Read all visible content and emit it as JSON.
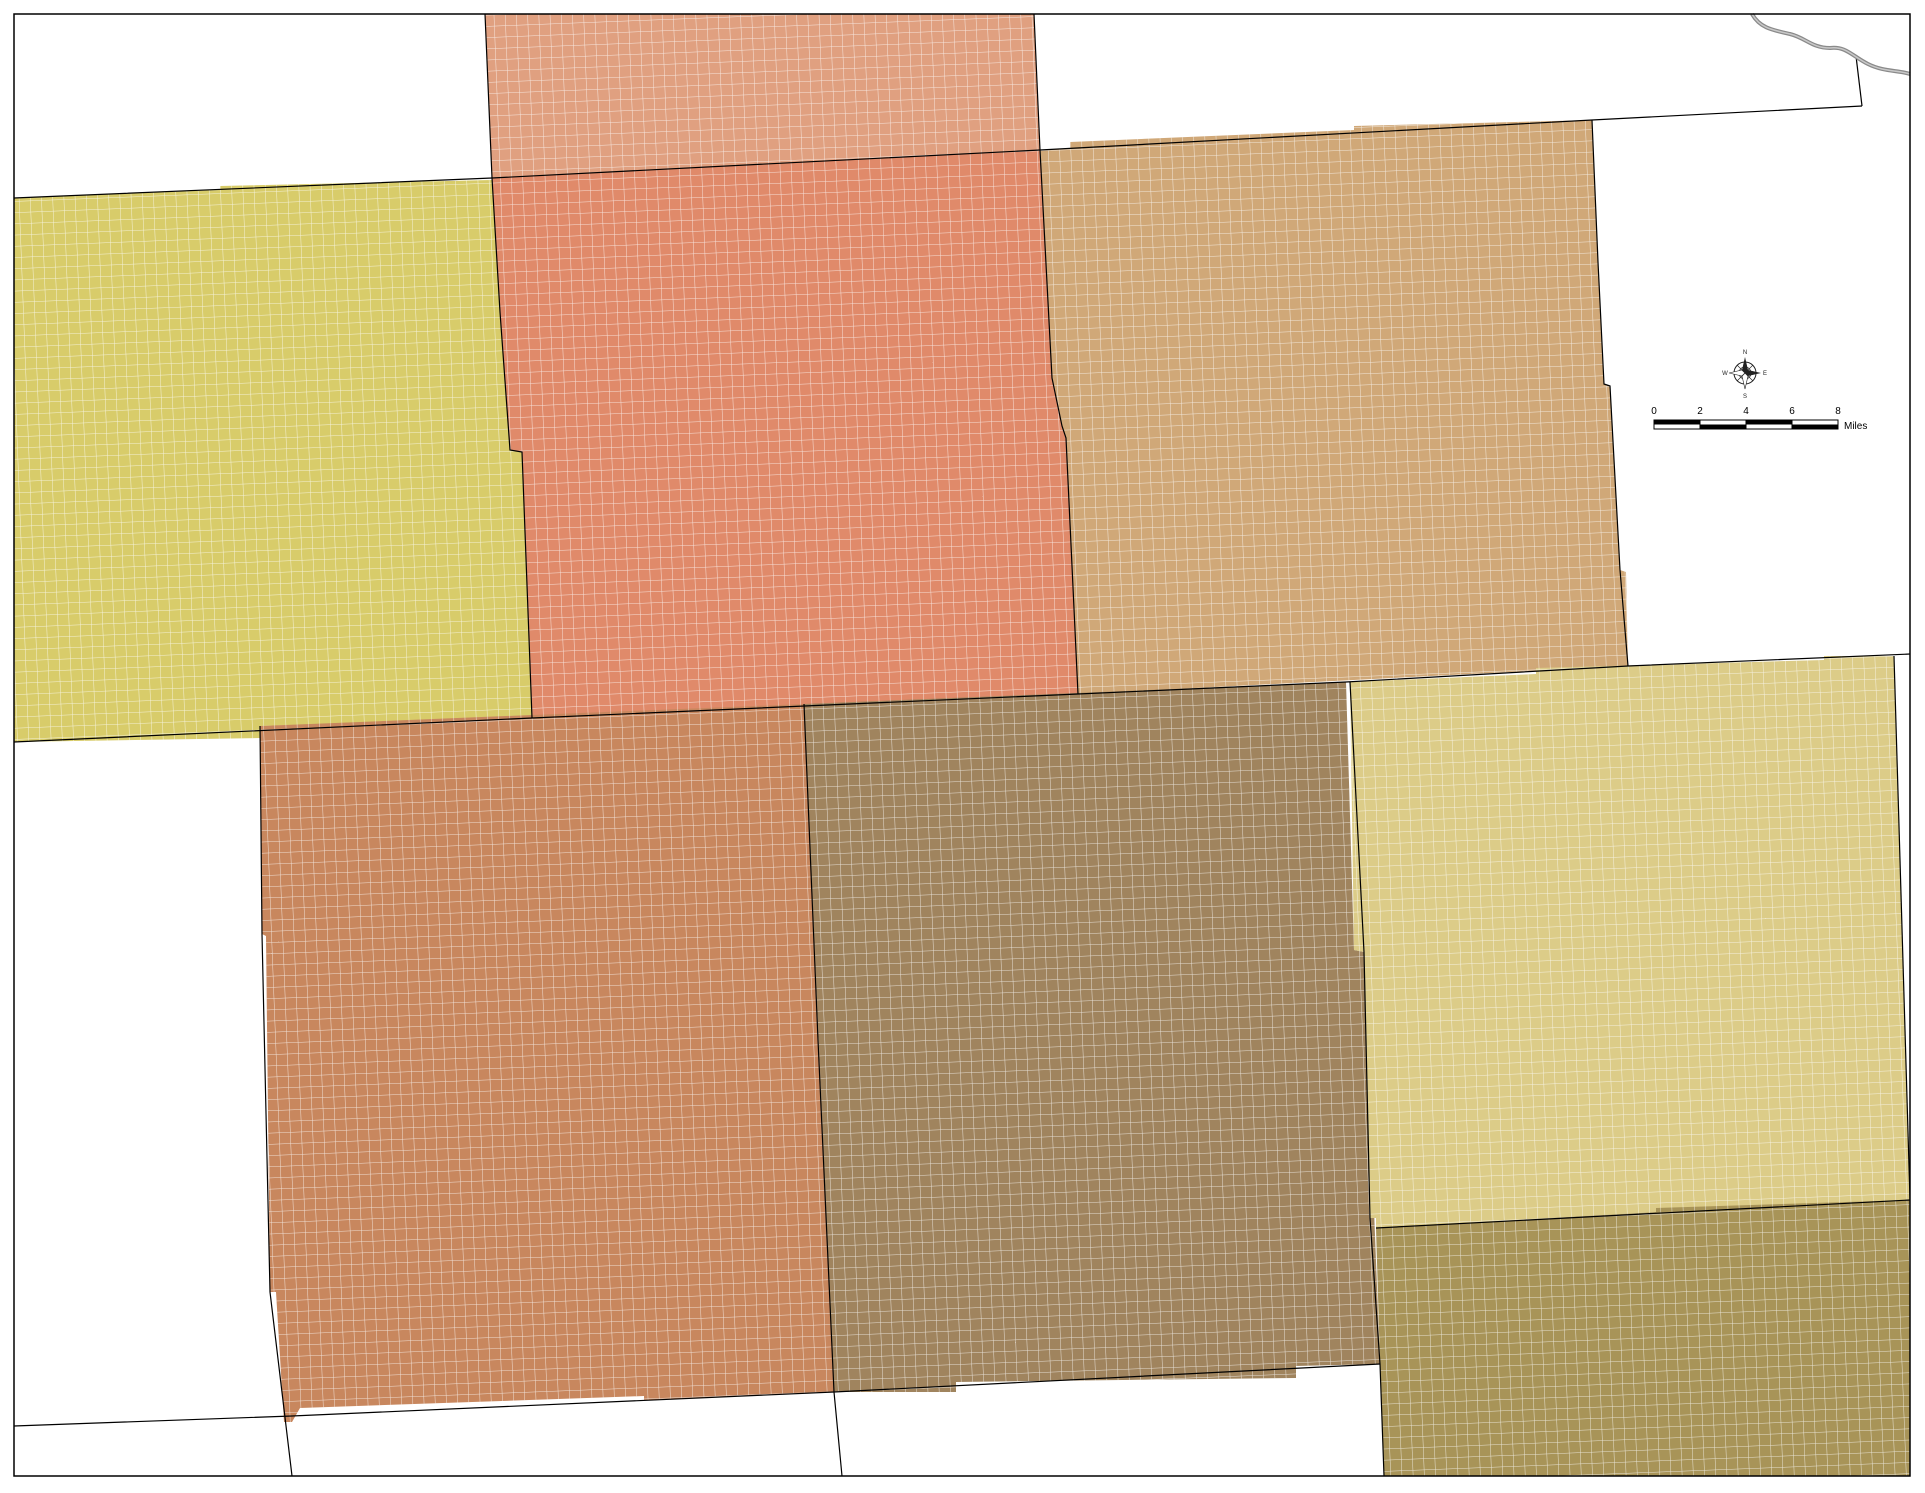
{
  "map": {
    "county_colors": {
      "north_center": "#e0a080",
      "west": "#d8cc6a",
      "center": "#e08a6a",
      "east": "#d0a878",
      "south_west": "#c8875e",
      "south_center": "#a0845e",
      "south_east": "#dccc88",
      "far_south_east": "#a89458"
    },
    "grid_line_color": "#ffffff",
    "boundary_color": "#000000",
    "river_color": "#8a8a8a"
  },
  "compass": {
    "n": "N",
    "s": "S",
    "e": "E",
    "w": "W"
  },
  "scale_bar": {
    "ticks": [
      "0",
      "2",
      "4",
      "6",
      "8"
    ],
    "unit": "Miles"
  }
}
